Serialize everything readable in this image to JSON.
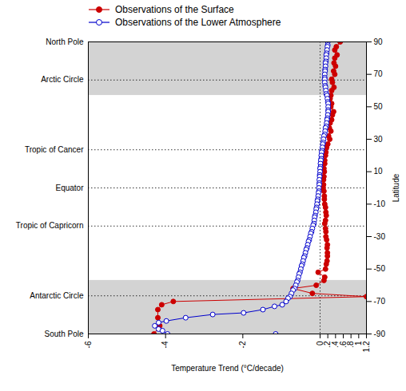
{
  "chart_data": {
    "type": "line",
    "xlabel": "Temperature Trend (°C/decade)",
    "ylabel": "Latitude",
    "xlim": [
      -6,
      1.2
    ],
    "ylim": [
      -90,
      90
    ],
    "xticks": [
      -6,
      -4,
      -2,
      0,
      {
        "value": 0.2,
        "label": ".2"
      },
      {
        "value": 0.4,
        "label": ".4"
      },
      {
        "value": 0.6,
        "label": ".6"
      },
      {
        "value": 0.8,
        "label": ".8"
      },
      1,
      1.2
    ],
    "yticks": [
      -90,
      -70,
      -50,
      -30,
      -10,
      10,
      30,
      50,
      70,
      90
    ],
    "grid": false,
    "legend": "top",
    "reference_lines": [
      {
        "y": 90,
        "label": "North Pole"
      },
      {
        "y": 66.5,
        "label": "Arctic Circle"
      },
      {
        "y": 23.5,
        "label": "Tropic of Cancer"
      },
      {
        "y": 0,
        "label": "Equator"
      },
      {
        "y": -23.5,
        "label": "Tropic of Capricorn"
      },
      {
        "y": -66.5,
        "label": "Antarctic Circle"
      },
      {
        "y": -90,
        "label": "South Pole"
      }
    ],
    "vlines": [
      0
    ],
    "bands": [
      {
        "y_bottom": 57,
        "y_top": 90,
        "color": "#d3d3d3"
      },
      {
        "y_bottom": -90,
        "y_top": -57,
        "color": "#d3d3d3"
      }
    ],
    "series": [
      {
        "name": "Observations of the Surface",
        "color": "#cc0000",
        "marker": "circle",
        "x": [
          0.52,
          0.42,
          0.38,
          0.44,
          0.38,
          0.36,
          0.4,
          0.35,
          0.38,
          0.3,
          0.32,
          0.36,
          0.3,
          0.28,
          0.26,
          0.3,
          0.28,
          0.35,
          0.32,
          0.3,
          0.26,
          0.24,
          0.28,
          0.22,
          0.25,
          0.2,
          0.17,
          0.15,
          0.14,
          0.12,
          0.12,
          0.1,
          0.11,
          0.1,
          0.09,
          0.09,
          0.08,
          0.1,
          0.11,
          0.11,
          0.12,
          0.14,
          0.15,
          0.16,
          0.14,
          0.12,
          0.14,
          0.15,
          0.15,
          0.17,
          0.19,
          0.18,
          0.19,
          0.19,
          0.18,
          0.16,
          0.14,
          -0.05,
          0.12,
          0.1,
          -0.1,
          -0.7,
          -0.2,
          1.2,
          -3.8,
          -4.1,
          -4.2,
          -4.2,
          -4.15,
          -4.3
        ],
        "y": [
          90,
          87,
          85,
          82,
          80,
          77,
          75,
          72,
          70,
          67,
          65,
          62,
          60,
          57,
          55,
          52,
          50,
          47,
          45,
          42,
          40,
          37,
          35,
          32,
          30,
          27,
          25,
          22,
          20,
          17,
          15,
          12,
          10,
          7,
          5,
          2,
          0,
          -2,
          -5,
          -7,
          -10,
          -12,
          -15,
          -17,
          -20,
          -22,
          -25,
          -27,
          -30,
          -32,
          -35,
          -37,
          -40,
          -42,
          -45,
          -47,
          -50,
          -52,
          -55,
          -57,
          -60,
          -62,
          -65,
          -67,
          -70,
          -72,
          -75,
          -80,
          -85,
          -90
        ]
      },
      {
        "name": "Observations of the Lower Atmosphere",
        "color": "#0000cc",
        "marker": "open_circle",
        "x": [
          0.2,
          0.2,
          0.19,
          0.18,
          0.17,
          0.16,
          0.16,
          0.15,
          0.14,
          0.14,
          0.13,
          0.13,
          0.12,
          0.12,
          0.12,
          0.12,
          0.13,
          0.14,
          0.15,
          0.16,
          0.18,
          0.19,
          0.2,
          0.21,
          0.21,
          0.21,
          0.21,
          0.2,
          0.19,
          0.18,
          0.17,
          0.16,
          0.14,
          0.13,
          0.12,
          0.1,
          0.09,
          0.08,
          0.07,
          0.06,
          0.05,
          0.04,
          0.03,
          0.03,
          0.02,
          0.01,
          0.01,
          0.0,
          0.0,
          -0.01,
          -0.01,
          -0.02,
          -0.02,
          -0.02,
          -0.03,
          -0.03,
          -0.04,
          -0.05,
          -0.06,
          -0.07,
          -0.08,
          -0.09,
          -0.1,
          -0.11,
          -0.13,
          -0.14,
          -0.15,
          -0.16,
          -0.18,
          -0.2,
          -0.22,
          -0.24,
          -0.26,
          -0.28,
          -0.3,
          -0.32,
          -0.34,
          -0.36,
          -0.38,
          -0.4,
          -0.42,
          -0.44,
          -0.46,
          -0.48,
          -0.5,
          -0.52,
          -0.54,
          -0.56,
          -0.58,
          -0.6,
          -0.63,
          -0.66,
          -0.7,
          -0.74,
          -0.78,
          -0.83,
          -0.88,
          -0.98,
          -1.18,
          -1.48,
          -1.98,
          -2.78,
          -3.48,
          -3.98,
          -4.18,
          -4.28,
          -4.18,
          -4.08,
          -3.95,
          -1.15
        ],
        "y": [
          90,
          88,
          87,
          85,
          83,
          82,
          80,
          78,
          77,
          75,
          73,
          72,
          70,
          68,
          67,
          65,
          63,
          62,
          60,
          58,
          57,
          55,
          53,
          52,
          50,
          48,
          47,
          45,
          43,
          42,
          40,
          38,
          37,
          35,
          33,
          32,
          30,
          28,
          27,
          25,
          23,
          22,
          20,
          18,
          17,
          15,
          13,
          12,
          10,
          8,
          7,
          5,
          3,
          2,
          0,
          -2,
          -3,
          -5,
          -7,
          -8,
          -10,
          -12,
          -13,
          -15,
          -17,
          -18,
          -20,
          -22,
          -23,
          -25,
          -27,
          -28,
          -30,
          -32,
          -33,
          -35,
          -37,
          -38,
          -40,
          -42,
          -43,
          -45,
          -47,
          -48,
          -50,
          -52,
          -53,
          -55,
          -57,
          -58,
          -60,
          -62,
          -63,
          -65,
          -67,
          -68,
          -70,
          -72,
          -73,
          -75,
          -77,
          -78,
          -80,
          -82,
          -83,
          -85,
          -87,
          -88,
          -90,
          -90
        ]
      }
    ]
  }
}
